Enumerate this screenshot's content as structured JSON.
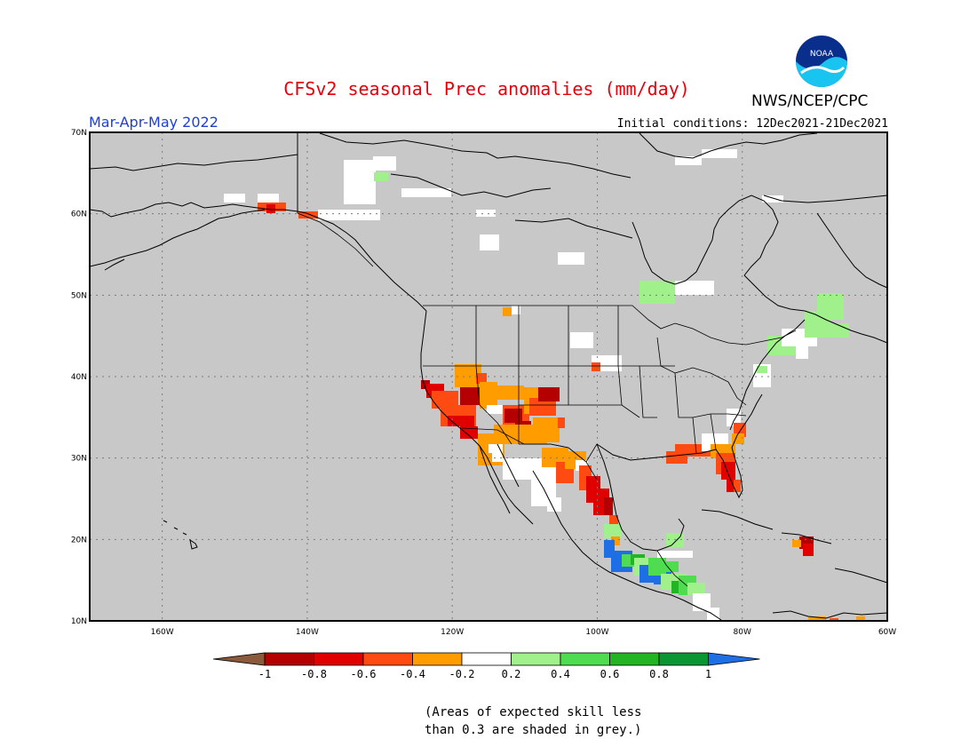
{
  "header": {
    "title": "CFSv2 seasonal Prec anomalies (mm/day)",
    "agency": "NWS/NCEP/CPC",
    "season": "Mar-Apr-May 2022",
    "initial_conditions": "Initial conditions: 12Dec2021-21Dec2021",
    "logo_text": "NOAA"
  },
  "map": {
    "lat_labels": [
      "70N",
      "60N",
      "50N",
      "40N",
      "30N",
      "20N",
      "10N"
    ],
    "lon_labels": [
      "160W",
      "140W",
      "120W",
      "100W",
      "80W",
      "60W"
    ],
    "masked_color": "#c8c8c8",
    "ocean_land_background": "#c8c8c8"
  },
  "legend": {
    "bins": [
      {
        "color": "#8b5a3c"
      },
      {
        "color": "#b40000"
      },
      {
        "color": "#e10000"
      },
      {
        "color": "#ff4a12"
      },
      {
        "color": "#ff9d00"
      },
      {
        "color": "#ffffff"
      },
      {
        "color": "#a0f08c"
      },
      {
        "color": "#50dc50"
      },
      {
        "color": "#23b423"
      },
      {
        "color": "#0a9632"
      },
      {
        "color": "#1e6ee6"
      }
    ],
    "tick_labels": [
      "-1",
      "-0.8",
      "-0.6",
      "-0.4",
      "-0.2",
      "0.2",
      "0.4",
      "0.6",
      "0.8",
      "1"
    ]
  },
  "footnote": {
    "line1": "(Areas of expected skill less",
    "line2": "than 0.3 are shaded in grey.)"
  }
}
